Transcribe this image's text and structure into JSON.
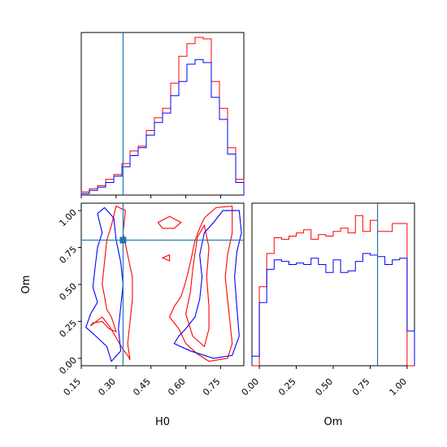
{
  "chart_data": {
    "type": "corner",
    "parameters": [
      "H0",
      "Om"
    ],
    "axis_labels": {
      "x_bottom_left": "H0",
      "x_bottom_right": "Om",
      "y_left": "Om"
    },
    "truth": {
      "H0": 0.33,
      "Om": 0.8
    },
    "truth_color": "#1f77b4",
    "colors": {
      "red_series": "#ff0000",
      "blue_series": "#0000ff"
    },
    "h0_axis": {
      "min": 0.15,
      "max": 0.85,
      "ticks": [
        0.15,
        0.3,
        0.45,
        0.6,
        0.75
      ],
      "tick_labels": [
        "0.15",
        "0.30",
        "0.45",
        "0.60",
        "0.75"
      ]
    },
    "om_axis": {
      "min": -0.05,
      "max": 1.05,
      "ticks": [
        0.0,
        0.25,
        0.5,
        0.75,
        1.0
      ],
      "tick_labels": [
        "0.00",
        "0.25",
        "0.50",
        "0.75",
        "1.00"
      ]
    },
    "h0_histogram": {
      "edges": [
        0.15,
        0.185,
        0.22,
        0.255,
        0.29,
        0.325,
        0.36,
        0.395,
        0.43,
        0.465,
        0.5,
        0.535,
        0.57,
        0.605,
        0.64,
        0.675,
        0.71,
        0.745,
        0.78,
        0.815,
        0.85
      ],
      "series": [
        {
          "color": "red",
          "values": [
            2,
            4,
            6,
            10,
            13,
            20,
            28,
            31,
            41,
            49,
            55,
            71,
            88,
            96,
            100,
            99,
            72,
            55,
            30,
            10
          ]
        },
        {
          "color": "blue",
          "values": [
            1,
            3,
            5,
            8,
            12,
            18,
            25,
            30,
            38,
            46,
            52,
            63,
            72,
            83,
            86,
            84,
            62,
            48,
            26,
            8
          ]
        }
      ]
    },
    "om_histogram": {
      "edges": [
        -0.05,
        0.0,
        0.05,
        0.1,
        0.15,
        0.2,
        0.25,
        0.3,
        0.35,
        0.4,
        0.45,
        0.5,
        0.55,
        0.6,
        0.65,
        0.7,
        0.75,
        0.8,
        0.85,
        0.9,
        0.95,
        1.0,
        1.05
      ],
      "series": [
        {
          "color": "red",
          "values": [
            0,
            50,
            71,
            81,
            80,
            82,
            84,
            86,
            80,
            83,
            82,
            85,
            87,
            84,
            95,
            85,
            92,
            85,
            85,
            90,
            90,
            0
          ]
        },
        {
          "color": "blue",
          "values": [
            6,
            40,
            61,
            67,
            66,
            64,
            65,
            64,
            68,
            64,
            59,
            67,
            59,
            60,
            66,
            71,
            70,
            69,
            64,
            67,
            68,
            22
          ]
        }
      ]
    },
    "contours": [
      {
        "color": "red",
        "x": [
          0.19,
          0.24,
          0.27,
          0.3,
          0.33,
          0.35,
          0.36,
          0.35,
          0.36,
          0.37,
          0.37,
          0.35,
          0.33,
          0.3,
          0.28,
          0.28,
          0.26,
          0.25,
          0.24,
          0.25,
          0.26,
          0.28,
          0.3,
          0.27,
          0.24,
          0.2,
          0.19
        ]
      },
      {
        "color": "red",
        "y": [
          0.22,
          0.28,
          0.22,
          0.14,
          0.06,
          0.02,
          -0.01,
          0.1,
          0.25,
          0.4,
          0.55,
          0.7,
          0.85,
          1.0,
          1.02,
          0.9,
          0.8,
          0.65,
          0.5,
          0.42,
          0.33,
          0.28,
          0.18,
          0.2,
          0.25,
          0.24,
          0.22
        ]
      }
    ]
  }
}
